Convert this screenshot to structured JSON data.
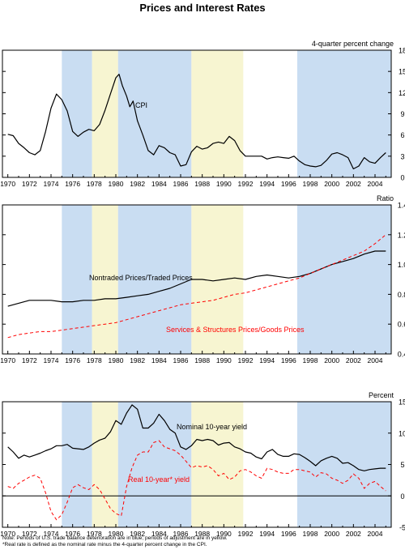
{
  "title": "Prices and Interest Rates",
  "colors": {
    "deterioration": "#c9ddf2",
    "adjustment": "#f7f5d1",
    "primary": "#000000",
    "secondary": "#ff0000"
  },
  "shading": {
    "blue": [
      [
        1975.0,
        1977.8
      ],
      [
        1980.2,
        1987.0
      ],
      [
        1996.8,
        2005.5
      ]
    ],
    "yellow": [
      [
        1977.8,
        1980.2
      ],
      [
        1987.0,
        1991.8
      ]
    ]
  },
  "x_ticks": [
    "1970",
    "1972",
    "1974",
    "1976",
    "1978",
    "1980",
    "1982",
    "1984",
    "1986",
    "1988",
    "1990",
    "1992",
    "1994",
    "1996",
    "1998",
    "2000",
    "2002",
    "2004"
  ],
  "chart_data": [
    {
      "type": "line",
      "ylabel": "4-quarter percent change",
      "xlim": [
        1969.5,
        2005.5
      ],
      "ylim": [
        0,
        18
      ],
      "yticks": [
        "0",
        "3",
        "6",
        "9",
        "12",
        "15",
        "18"
      ],
      "series": [
        {
          "name": "CPI",
          "x": [
            1970.0,
            1970.5,
            1971.0,
            1971.5,
            1972.0,
            1972.5,
            1973.0,
            1973.5,
            1974.0,
            1974.5,
            1975.0,
            1975.5,
            1976.0,
            1976.5,
            1977.0,
            1977.5,
            1978.0,
            1978.5,
            1979.0,
            1979.5,
            1980.0,
            1980.3,
            1980.6,
            1981.0,
            1981.3,
            1981.6,
            1982.0,
            1982.5,
            1983.0,
            1983.5,
            1984.0,
            1984.5,
            1985.0,
            1985.5,
            1986.0,
            1986.5,
            1987.0,
            1987.5,
            1988.0,
            1988.5,
            1989.0,
            1989.5,
            1990.0,
            1990.5,
            1991.0,
            1991.5,
            1992.0,
            1992.5,
            1993.0,
            1993.5,
            1994.0,
            1994.5,
            1995.0,
            1995.5,
            1996.0,
            1996.5,
            1997.0,
            1997.5,
            1998.0,
            1998.5,
            1999.0,
            1999.5,
            2000.0,
            2000.5,
            2001.0,
            2001.5,
            2002.0,
            2002.5,
            2003.0,
            2003.5,
            2004.0,
            2004.5,
            2005.0
          ],
          "values": [
            6.1,
            5.9,
            4.8,
            4.2,
            3.5,
            3.2,
            3.8,
            6.5,
            9.8,
            11.8,
            11.0,
            9.4,
            6.5,
            5.8,
            6.4,
            6.8,
            6.6,
            7.5,
            9.5,
            11.8,
            14.1,
            14.6,
            13.0,
            11.5,
            10.0,
            10.8,
            8.0,
            6.0,
            3.8,
            3.2,
            4.5,
            4.2,
            3.5,
            3.2,
            1.6,
            1.8,
            3.6,
            4.4,
            4.0,
            4.2,
            4.8,
            5.0,
            4.8,
            5.8,
            5.2,
            3.8,
            3.0,
            3.0,
            3.0,
            3.0,
            2.6,
            2.8,
            2.9,
            2.8,
            2.7,
            3.0,
            2.3,
            1.8,
            1.6,
            1.5,
            1.7,
            2.4,
            3.3,
            3.5,
            3.2,
            2.8,
            1.2,
            1.6,
            2.8,
            2.2,
            2.0,
            2.8,
            3.5
          ]
        }
      ]
    },
    {
      "type": "line",
      "ylabel": "Ratio",
      "xlim": [
        1969.5,
        2005.5
      ],
      "ylim": [
        0.4,
        1.4
      ],
      "yticks": [
        "0.4",
        "0.6",
        "0.8",
        "1.0",
        "1.2",
        "1.4"
      ],
      "series": [
        {
          "name": "Nontraded Prices/Traded Prices",
          "style": "solid",
          "x": [
            1970,
            1971,
            1972,
            1973,
            1974,
            1975,
            1976,
            1977,
            1978,
            1979,
            1980,
            1981,
            1982,
            1983,
            1984,
            1985,
            1986,
            1987,
            1988,
            1989,
            1990,
            1991,
            1992,
            1993,
            1994,
            1995,
            1996,
            1997,
            1998,
            1999,
            2000,
            2001,
            2002,
            2003,
            2004,
            2005
          ],
          "values": [
            0.72,
            0.74,
            0.76,
            0.76,
            0.76,
            0.75,
            0.75,
            0.76,
            0.76,
            0.77,
            0.77,
            0.78,
            0.79,
            0.8,
            0.82,
            0.84,
            0.87,
            0.9,
            0.9,
            0.89,
            0.9,
            0.91,
            0.9,
            0.92,
            0.93,
            0.92,
            0.91,
            0.92,
            0.94,
            0.97,
            1.0,
            1.02,
            1.04,
            1.07,
            1.09,
            1.09
          ]
        },
        {
          "name": "Services & Structures Prices/Goods Prices",
          "style": "dashed",
          "x": [
            1970,
            1971,
            1972,
            1973,
            1974,
            1975,
            1976,
            1977,
            1978,
            1979,
            1980,
            1981,
            1982,
            1983,
            1984,
            1985,
            1986,
            1987,
            1988,
            1989,
            1990,
            1991,
            1992,
            1993,
            1994,
            1995,
            1996,
            1997,
            1998,
            1999,
            2000,
            2001,
            2002,
            2003,
            2004,
            2005
          ],
          "values": [
            0.51,
            0.53,
            0.54,
            0.55,
            0.55,
            0.56,
            0.57,
            0.58,
            0.59,
            0.6,
            0.61,
            0.63,
            0.65,
            0.67,
            0.69,
            0.71,
            0.73,
            0.74,
            0.75,
            0.76,
            0.78,
            0.8,
            0.81,
            0.83,
            0.85,
            0.87,
            0.89,
            0.91,
            0.94,
            0.97,
            1.0,
            1.03,
            1.06,
            1.09,
            1.14,
            1.2
          ]
        }
      ]
    },
    {
      "type": "line",
      "ylabel": "Percent",
      "xlim": [
        1969.5,
        2005.5
      ],
      "ylim": [
        -5,
        15
      ],
      "yticks": [
        "-5",
        "0",
        "5",
        "10",
        "15"
      ],
      "series": [
        {
          "name": "Nominal 10-year yield",
          "style": "solid",
          "x": [
            1970.0,
            1970.5,
            1971.0,
            1971.5,
            1972.0,
            1972.5,
            1973.0,
            1973.5,
            1974.0,
            1974.5,
            1975.0,
            1975.5,
            1976.0,
            1976.5,
            1977.0,
            1977.5,
            1978.0,
            1978.5,
            1979.0,
            1979.5,
            1980.0,
            1980.5,
            1981.0,
            1981.5,
            1982.0,
            1982.5,
            1983.0,
            1983.5,
            1984.0,
            1984.5,
            1985.0,
            1985.5,
            1986.0,
            1986.5,
            1987.0,
            1987.5,
            1988.0,
            1988.5,
            1989.0,
            1989.5,
            1990.0,
            1990.5,
            1991.0,
            1991.5,
            1992.0,
            1992.5,
            1993.0,
            1993.5,
            1994.0,
            1994.5,
            1995.0,
            1995.5,
            1996.0,
            1996.5,
            1997.0,
            1997.5,
            1998.0,
            1998.5,
            1999.0,
            1999.5,
            2000.0,
            2000.5,
            2001.0,
            2001.5,
            2002.0,
            2002.5,
            2003.0,
            2003.5,
            2004.0,
            2004.5,
            2005.0
          ],
          "values": [
            7.8,
            7.0,
            6.0,
            6.5,
            6.2,
            6.5,
            6.8,
            7.2,
            7.5,
            8.0,
            8.0,
            8.2,
            7.6,
            7.5,
            7.4,
            7.8,
            8.4,
            8.9,
            9.2,
            10.2,
            12.0,
            11.4,
            13.2,
            14.5,
            13.8,
            10.8,
            10.8,
            11.6,
            13.0,
            12.0,
            10.6,
            10.0,
            7.8,
            7.4,
            8.0,
            9.0,
            8.8,
            9.0,
            8.8,
            8.1,
            8.4,
            8.5,
            7.8,
            7.5,
            7.0,
            6.8,
            6.2,
            5.9,
            7.0,
            7.4,
            6.6,
            6.3,
            6.3,
            6.7,
            6.6,
            6.1,
            5.5,
            4.8,
            5.6,
            6.0,
            6.3,
            6.0,
            5.2,
            5.3,
            4.8,
            4.2,
            4.0,
            4.2,
            4.3,
            4.4,
            4.4
          ]
        },
        {
          "name": "Real 10-year* yield",
          "style": "dashed",
          "x": [
            1970.0,
            1970.5,
            1971.0,
            1971.5,
            1972.0,
            1972.5,
            1973.0,
            1973.5,
            1974.0,
            1974.5,
            1975.0,
            1975.5,
            1976.0,
            1976.5,
            1977.0,
            1977.5,
            1978.0,
            1978.5,
            1979.0,
            1979.5,
            1980.0,
            1980.5,
            1981.0,
            1981.5,
            1982.0,
            1982.5,
            1983.0,
            1983.5,
            1984.0,
            1984.5,
            1985.0,
            1985.5,
            1986.0,
            1986.5,
            1987.0,
            1987.5,
            1988.0,
            1988.5,
            1989.0,
            1989.5,
            1990.0,
            1990.5,
            1991.0,
            1991.5,
            1992.0,
            1992.5,
            1993.0,
            1993.5,
            1994.0,
            1994.5,
            1995.0,
            1995.5,
            1996.0,
            1996.5,
            1997.0,
            1997.5,
            1998.0,
            1998.5,
            1999.0,
            1999.5,
            2000.0,
            2000.5,
            2001.0,
            2001.5,
            2002.0,
            2002.5,
            2003.0,
            2003.5,
            2004.0,
            2004.5,
            2005.0
          ],
          "values": [
            1.5,
            1.2,
            2.0,
            2.5,
            3.0,
            3.3,
            2.8,
            0.5,
            -2.5,
            -3.8,
            -3.0,
            -1.0,
            1.3,
            1.8,
            1.3,
            1.0,
            1.8,
            1.0,
            -0.5,
            -2.0,
            -2.8,
            -3.2,
            1.5,
            4.5,
            6.5,
            7.0,
            7.0,
            8.5,
            8.8,
            7.8,
            7.5,
            7.2,
            6.5,
            5.5,
            4.5,
            4.8,
            4.6,
            4.8,
            4.2,
            3.2,
            3.6,
            2.6,
            3.0,
            4.0,
            4.2,
            3.8,
            3.2,
            2.8,
            4.4,
            4.2,
            3.8,
            3.6,
            3.6,
            4.2,
            4.2,
            4.0,
            3.8,
            3.0,
            3.7,
            3.5,
            2.8,
            2.5,
            2.0,
            2.5,
            3.5,
            2.8,
            1.2,
            2.0,
            2.3,
            1.5,
            0.8
          ]
        }
      ]
    }
  ],
  "note_text": "Note:  Periods of U.S. trade balance deterioration are in blue; periods of adjustment are in yellow.",
  "footnote_text": "*Real rate is defined as the nominal rate minus the 4-quarter percent change in the CPI."
}
